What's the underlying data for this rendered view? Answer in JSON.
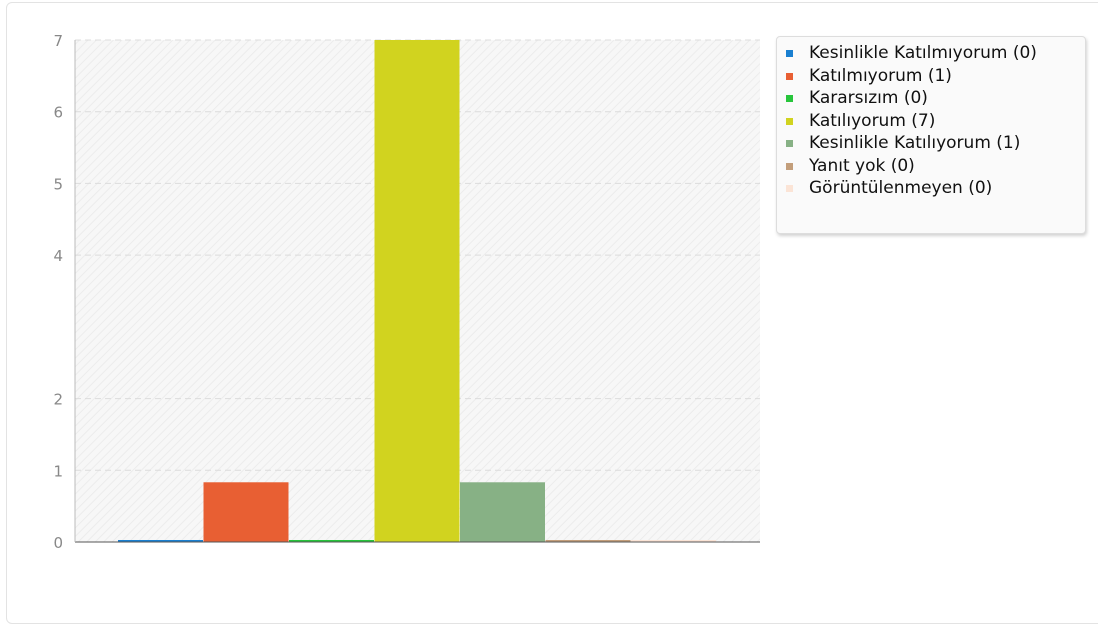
{
  "chart_data": {
    "type": "bar",
    "categories": [
      "Kesinlikle Katılmıyorum",
      "Katılmıyorum",
      "Kararsızım",
      "Katılıyorum",
      "Kesinlikle Katılıyorum",
      "Yanıt yok",
      "Görüntülenmeyen"
    ],
    "values": [
      0,
      1,
      0,
      7,
      1,
      0,
      0
    ],
    "colors": [
      "#1a7fd0",
      "#e85f33",
      "#27c53b",
      "#d1d31f",
      "#87b185",
      "#c39e7b",
      "#fbe4d6"
    ],
    "yticks": [
      "0",
      "1",
      "2",
      "4",
      "5",
      "6",
      "7"
    ],
    "ylim": [
      0,
      7
    ],
    "grid": true,
    "legend_position": "top-right",
    "legend": [
      "Kesinlikle Katılmıyorum (0)",
      "Katılmıyorum (1)",
      "Kararsızım (0)",
      "Katılıyorum (7)",
      "Kesinlikle Katılıyorum (1)",
      "Yanıt yok (0)",
      "Görüntülenmeyen (0)"
    ]
  }
}
